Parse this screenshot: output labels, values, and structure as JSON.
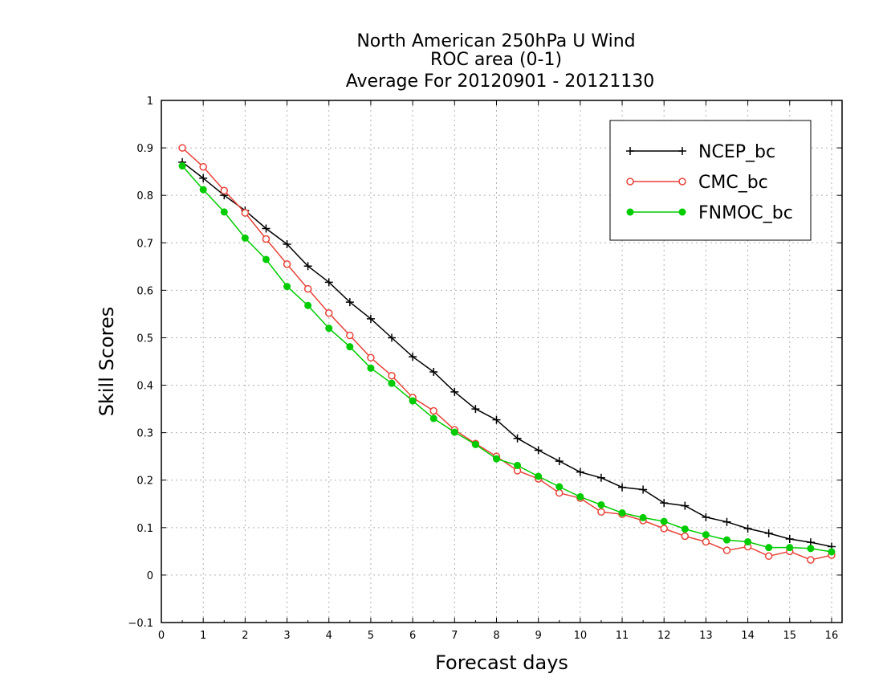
{
  "chart_data": {
    "type": "line",
    "title": [
      "North American 250hPa U Wind",
      "ROC area (0-1)",
      "Average For 20120901 - 20121130"
    ],
    "xlabel": "Forecast days",
    "ylabel": "Skill Scores",
    "xlim": [
      0,
      16.25
    ],
    "ylim": [
      -0.1,
      1.0
    ],
    "xticks": [
      "0",
      "1",
      "2",
      "3",
      "4",
      "5",
      "6",
      "7",
      "8",
      "9",
      "10",
      "11",
      "12",
      "13",
      "14",
      "15",
      "16"
    ],
    "yticks": [
      "−0.1",
      "0",
      "0.1",
      "0.2",
      "0.3",
      "0.4",
      "0.5",
      "0.6",
      "0.7",
      "0.8",
      "0.9",
      "1"
    ],
    "grid": true,
    "legend_position": "top-right",
    "x": [
      0.5,
      1.0,
      1.5,
      2.0,
      2.5,
      3.0,
      3.5,
      4.0,
      4.5,
      5.0,
      5.5,
      6.0,
      6.5,
      7.0,
      7.5,
      8.0,
      8.5,
      9.0,
      9.5,
      10.0,
      10.5,
      11.0,
      11.5,
      12.0,
      12.5,
      13.0,
      13.5,
      14.0,
      14.5,
      15.0,
      15.5,
      16.0
    ],
    "series": [
      {
        "name": "NCEP_bc",
        "color": "#000000",
        "marker": "plus",
        "values": [
          0.87,
          0.836,
          0.8,
          0.768,
          0.73,
          0.697,
          0.651,
          0.617,
          0.575,
          0.54,
          0.5,
          0.46,
          0.428,
          0.386,
          0.35,
          0.327,
          0.288,
          0.263,
          0.24,
          0.217,
          0.205,
          0.185,
          0.18,
          0.152,
          0.146,
          0.122,
          0.112,
          0.098,
          0.088,
          0.076,
          0.069,
          0.06
        ]
      },
      {
        "name": "CMC_bc",
        "color": "#e8443a",
        "marker": "open-circle",
        "values": [
          0.9,
          0.86,
          0.81,
          0.763,
          0.708,
          0.655,
          0.603,
          0.552,
          0.505,
          0.458,
          0.42,
          0.374,
          0.346,
          0.306,
          0.277,
          0.25,
          0.22,
          0.203,
          0.173,
          0.162,
          0.133,
          0.128,
          0.115,
          0.098,
          0.082,
          0.07,
          0.052,
          0.06,
          0.04,
          0.05,
          0.032,
          0.042
        ]
      },
      {
        "name": "FNMOC_bc",
        "color": "#00cc00",
        "marker": "filled-circle",
        "values": [
          0.862,
          0.812,
          0.765,
          0.71,
          0.665,
          0.608,
          0.568,
          0.52,
          0.481,
          0.436,
          0.404,
          0.367,
          0.33,
          0.301,
          0.275,
          0.245,
          0.231,
          0.208,
          0.186,
          0.165,
          0.148,
          0.131,
          0.121,
          0.113,
          0.097,
          0.085,
          0.074,
          0.07,
          0.058,
          0.058,
          0.056,
          0.049
        ]
      }
    ]
  }
}
